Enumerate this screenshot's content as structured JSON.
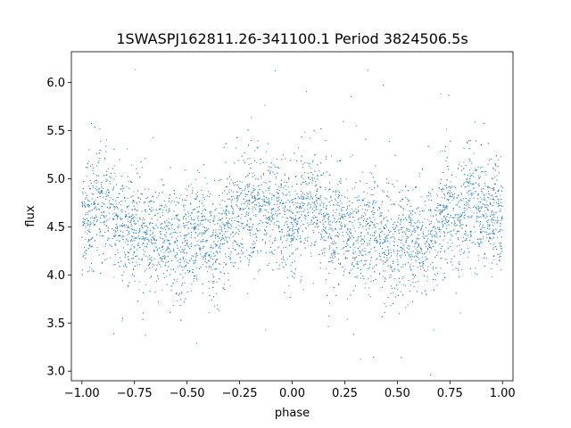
{
  "chart_data": {
    "type": "scatter",
    "title": "1SWASPJ162811.26-341100.1 Period 3824506.5s",
    "xlabel": "phase",
    "ylabel": "flux",
    "xlim": [
      -1.05,
      1.05
    ],
    "ylim": [
      2.9,
      6.32
    ],
    "xticks": [
      -1.0,
      -0.75,
      -0.5,
      -0.25,
      0.0,
      0.25,
      0.5,
      0.75,
      1.0
    ],
    "xtick_labels": [
      "−1.00",
      "−0.75",
      "−0.50",
      "−0.25",
      "0.00",
      "0.25",
      "0.50",
      "0.75",
      "1.00"
    ],
    "yticks": [
      3.0,
      3.5,
      4.0,
      4.5,
      5.0,
      5.5,
      6.0
    ],
    "ytick_labels": [
      "3.0",
      "3.5",
      "4.0",
      "4.5",
      "5.0",
      "5.5",
      "6.0"
    ],
    "grid": false,
    "legend": "none",
    "point_color": "#1f77b4",
    "series": [
      {
        "phase_profile": {
          "phase": [
            0.0,
            0.04,
            0.08,
            0.12,
            0.16,
            0.2,
            0.24,
            0.28,
            0.32,
            0.36,
            0.4,
            0.44,
            0.48,
            0.52,
            0.56,
            0.6,
            0.64,
            0.68,
            0.72,
            0.76,
            0.8,
            0.84,
            0.88,
            0.92,
            0.96,
            1.0
          ],
          "flux": [
            4.55,
            4.65,
            4.75,
            4.7,
            4.55,
            4.45,
            4.5,
            4.45,
            4.4,
            4.42,
            4.45,
            4.35,
            4.3,
            4.4,
            4.42,
            4.35,
            4.3,
            4.45,
            4.6,
            4.65,
            4.7,
            4.7,
            4.65,
            4.65,
            4.6,
            4.55
          ],
          "spread": 0.28
        },
        "n_points": 6000
      }
    ]
  }
}
